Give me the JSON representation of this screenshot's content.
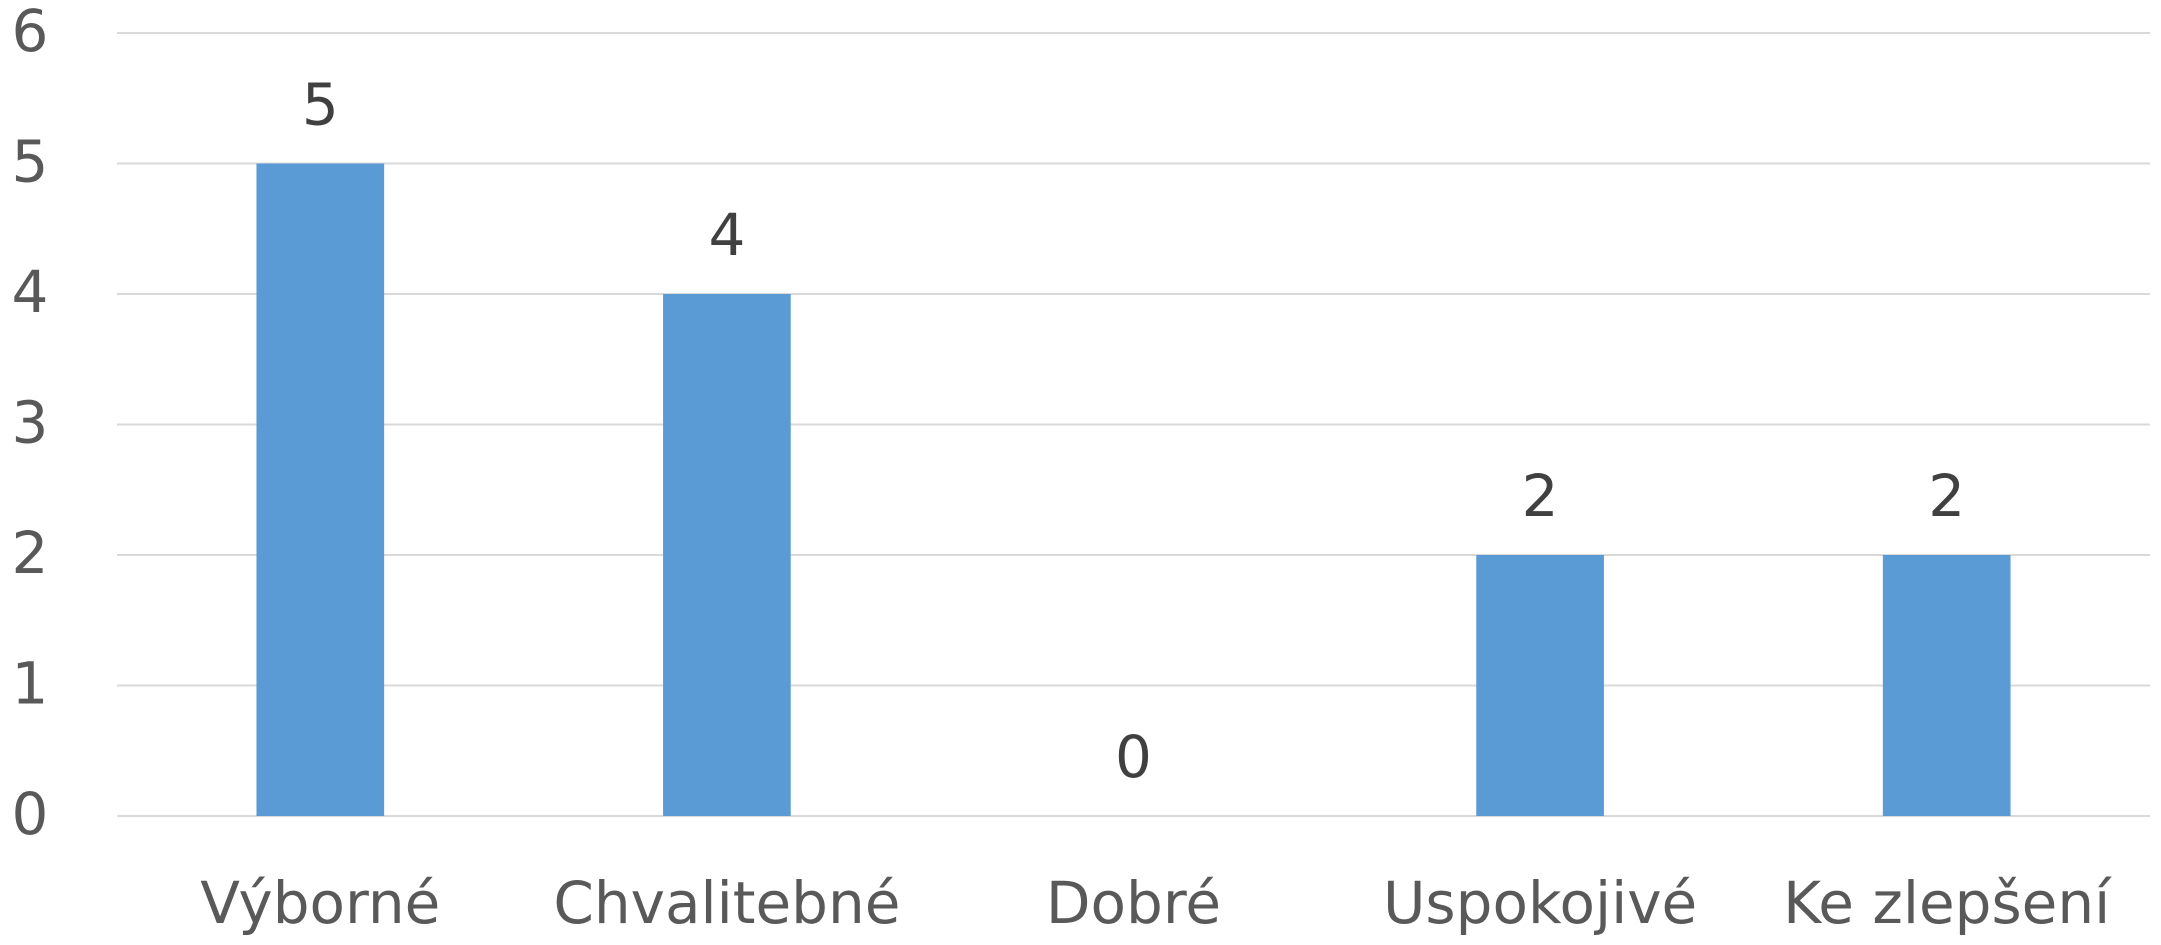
{
  "chart_data": {
    "type": "bar",
    "categories": [
      "Výborné",
      "Chvalitebné",
      "Dobré",
      "Uspokojivé",
      "Ke zlepšení"
    ],
    "values": [
      5,
      4,
      0,
      2,
      2
    ],
    "color": "#5b9bd5",
    "ylim": [
      0,
      6
    ],
    "yticks": [
      0,
      1,
      2,
      3,
      4,
      5,
      6
    ],
    "grid": true,
    "data_labels": true
  }
}
